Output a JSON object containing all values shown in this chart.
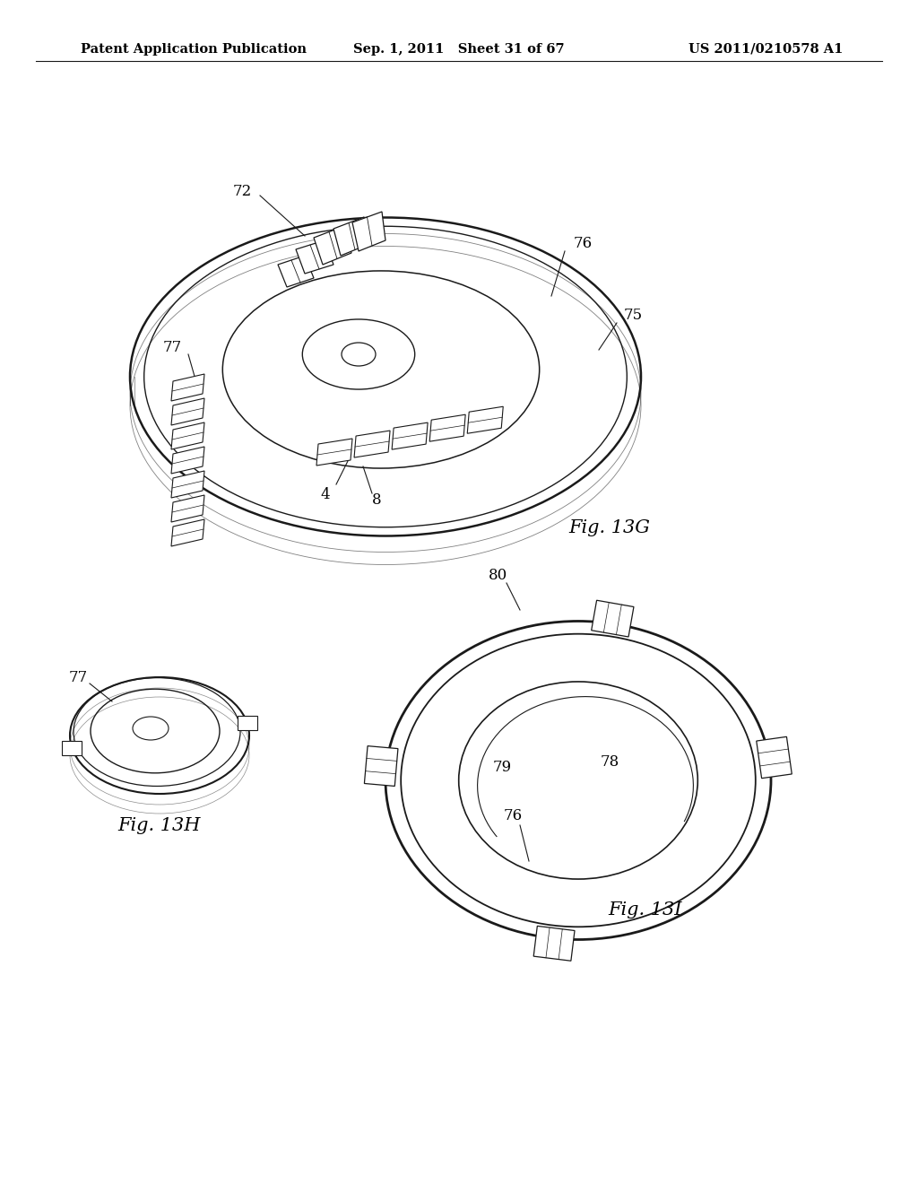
{
  "background_color": "#ffffff",
  "header_left": "Patent Application Publication",
  "header_center": "Sep. 1, 2011   Sheet 31 of 67",
  "header_right": "US 2011/0210578 A1",
  "fig_13G_label": "Fig. 13G",
  "fig_13H_label": "Fig. 13H",
  "fig_13I_label": "Fig. 13I",
  "line_color": "#1a1a1a",
  "text_color": "#000000",
  "header_font_size": 10.5,
  "label_font_size": 12,
  "fig_label_font_size": 15
}
